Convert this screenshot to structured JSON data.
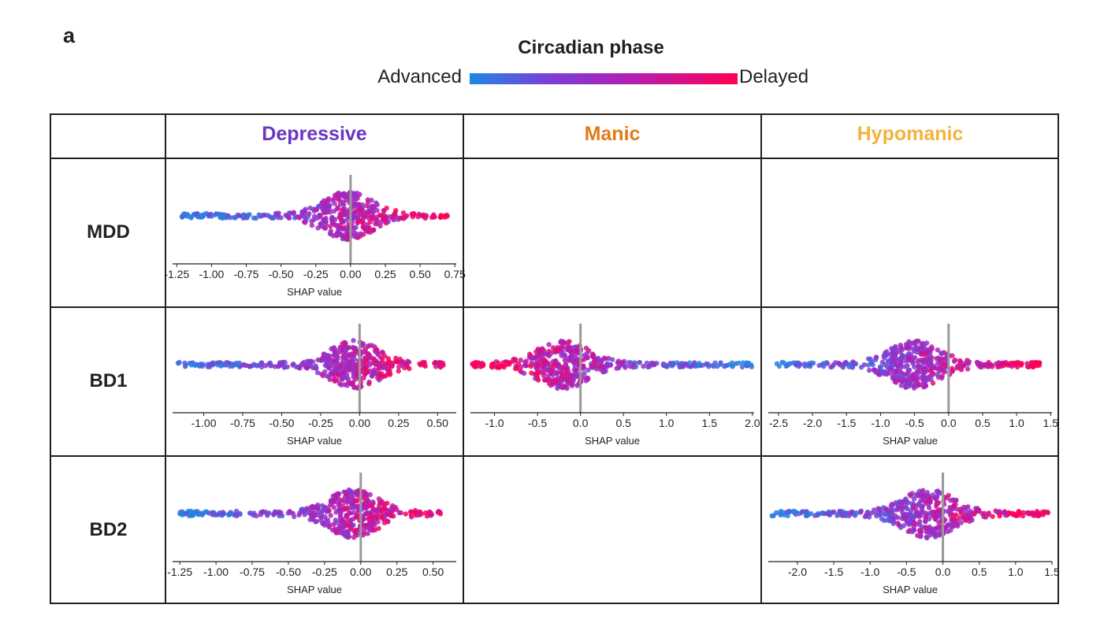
{
  "panel_label": "a",
  "legend": {
    "title": "Circadian phase",
    "low_label": "Advanced",
    "high_label": "Delayed",
    "colors": [
      "#1e88e5",
      "#7b3fd6",
      "#b21fb5",
      "#ff0052"
    ]
  },
  "columns": [
    {
      "label": "Depressive",
      "color": "#6a36c4"
    },
    {
      "label": "Manic",
      "color": "#e07b1a"
    },
    {
      "label": "Hypomanic",
      "color": "#f5b23d"
    }
  ],
  "rows": [
    {
      "label": "MDD"
    },
    {
      "label": "BD1"
    },
    {
      "label": "BD2"
    }
  ],
  "chart_data": [
    {
      "type": "scatter",
      "row": "MDD",
      "column": "Depressive",
      "xlabel": "SHAP value",
      "xlim": [
        -1.28,
        0.76
      ],
      "ticks": [
        -1.25,
        -1.0,
        -0.75,
        -0.5,
        -0.25,
        0.0,
        0.25,
        0.5,
        0.75
      ],
      "tick_labels": [
        "-1.25",
        "-1.00",
        "-0.75",
        "-0.50",
        "-0.25",
        "0.00",
        "0.25",
        "0.50",
        "0.75"
      ],
      "range": [
        -1.22,
        0.7
      ],
      "peak": -0.02,
      "low_side_color": "advanced"
    },
    {
      "type": "scatter",
      "row": "BD1",
      "column": "Depressive",
      "xlabel": "SHAP value",
      "xlim": [
        -1.2,
        0.62
      ],
      "ticks": [
        -1.0,
        -0.75,
        -0.5,
        -0.25,
        0.0,
        0.25,
        0.5
      ],
      "tick_labels": [
        "-1.00",
        "-0.75",
        "-0.50",
        "-0.25",
        "0.00",
        "0.25",
        "0.50"
      ],
      "range": [
        -1.17,
        0.54
      ],
      "peak": -0.03,
      "low_side_color": "advanced"
    },
    {
      "type": "scatter",
      "row": "BD1",
      "column": "Manic",
      "xlabel": "SHAP value",
      "xlim": [
        -1.28,
        2.02
      ],
      "ticks": [
        -1.0,
        -0.5,
        0.0,
        0.5,
        1.0,
        1.5,
        2.0
      ],
      "tick_labels": [
        "-1.0",
        "-0.5",
        "0.0",
        "0.5",
        "1.0",
        "1.5",
        "2.0"
      ],
      "range": [
        -1.26,
        2.0
      ],
      "peak": -0.2,
      "low_side_color": "delayed"
    },
    {
      "type": "scatter",
      "row": "BD1",
      "column": "Hypomanic",
      "xlabel": "SHAP value",
      "xlim": [
        -2.65,
        1.52
      ],
      "ticks": [
        -2.5,
        -2.0,
        -1.5,
        -1.0,
        -0.5,
        0.0,
        0.5,
        1.0,
        1.5
      ],
      "tick_labels": [
        "-2.5",
        "-2.0",
        "-1.5",
        "-1.0",
        "-0.5",
        "0.0",
        "0.5",
        "1.0",
        "1.5"
      ],
      "range": [
        -2.6,
        1.35
      ],
      "peak": -0.5,
      "low_side_color": "advanced"
    },
    {
      "type": "scatter",
      "row": "BD2",
      "column": "Depressive",
      "xlabel": "SHAP value",
      "xlim": [
        -1.3,
        0.66
      ],
      "ticks": [
        -1.25,
        -1.0,
        -0.75,
        -0.5,
        -0.25,
        0.0,
        0.25,
        0.5
      ],
      "tick_labels": [
        "-1.25",
        "-1.00",
        "-0.75",
        "-0.50",
        "-0.25",
        "0.00",
        "0.25",
        "0.50"
      ],
      "range": [
        -1.25,
        0.6
      ],
      "peak": -0.05,
      "low_side_color": "advanced"
    },
    {
      "type": "scatter",
      "row": "BD2",
      "column": "Hypomanic",
      "xlabel": "SHAP value",
      "xlim": [
        -2.4,
        1.5
      ],
      "ticks": [
        -2.0,
        -1.5,
        -1.0,
        -0.5,
        0.0,
        0.5,
        1.0,
        1.5
      ],
      "tick_labels": [
        "-2.0",
        "-1.5",
        "-1.0",
        "-0.5",
        "0.0",
        "0.5",
        "1.0",
        "1.5"
      ],
      "range": [
        -2.35,
        1.45
      ],
      "peak": -0.2,
      "low_side_color": "advanced"
    }
  ]
}
